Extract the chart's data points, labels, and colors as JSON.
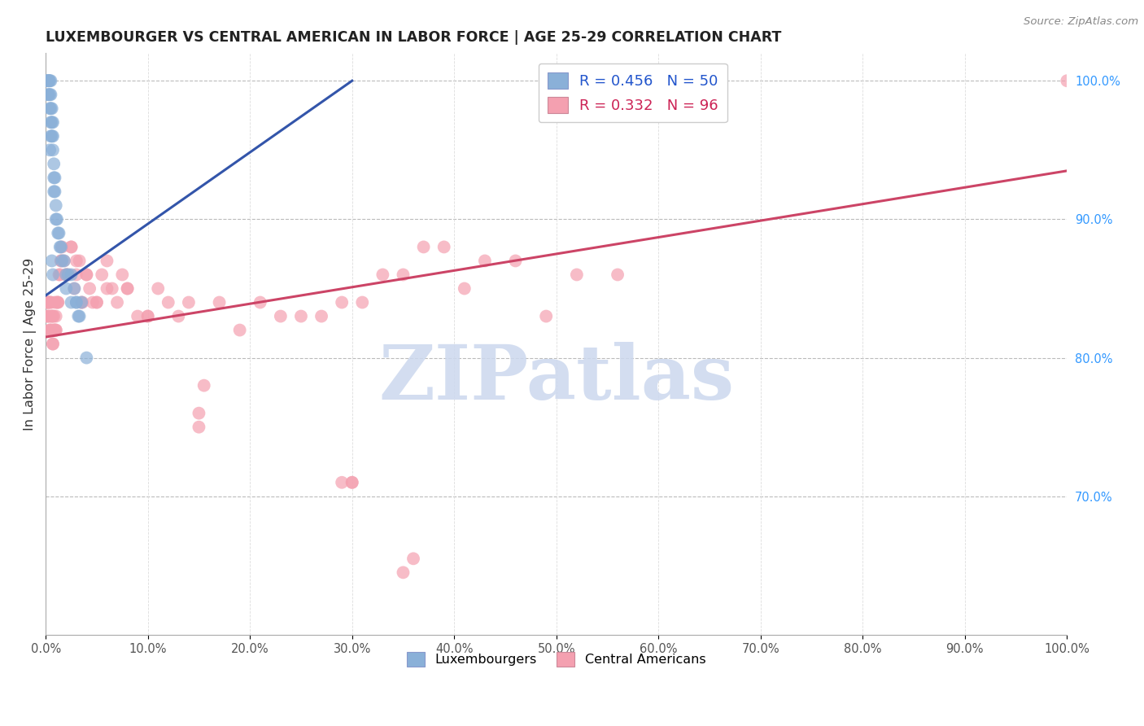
{
  "title": "LUXEMBOURGER VS CENTRAL AMERICAN IN LABOR FORCE | AGE 25-29 CORRELATION CHART",
  "source": "Source: ZipAtlas.com",
  "ylabel": "In Labor Force | Age 25-29",
  "xlim": [
    0.0,
    1.0
  ],
  "ylim": [
    0.6,
    1.02
  ],
  "right_yticks": [
    0.7,
    0.8,
    0.9,
    1.0
  ],
  "right_yticklabels": [
    "70.0%",
    "80.0%",
    "90.0%",
    "100.0%"
  ],
  "xtick_positions": [
    0.0,
    0.1,
    0.2,
    0.3,
    0.4,
    0.5,
    0.6,
    0.7,
    0.8,
    0.9,
    1.0
  ],
  "xtick_labels": [
    "0.0%",
    "10.0%",
    "20.0%",
    "30.0%",
    "40.0%",
    "50.0%",
    "60.0%",
    "70.0%",
    "80.0%",
    "90.0%",
    "100.0%"
  ],
  "blue_R": 0.456,
  "blue_N": 50,
  "pink_R": 0.332,
  "pink_N": 96,
  "blue_color": "#8ab0d8",
  "pink_color": "#f4a0b0",
  "blue_line_color": "#3355aa",
  "pink_line_color": "#cc4466",
  "watermark_text": "ZIPatlas",
  "watermark_color": "#ccd8ee",
  "blue_line_x0": 0.0,
  "blue_line_y0": 0.845,
  "blue_line_x1": 0.3,
  "blue_line_y1": 1.0,
  "pink_line_x0": 0.0,
  "pink_line_y0": 0.815,
  "pink_line_x1": 1.0,
  "pink_line_y1": 0.935,
  "blue_points_x": [
    0.001,
    0.002,
    0.002,
    0.003,
    0.003,
    0.003,
    0.003,
    0.004,
    0.004,
    0.004,
    0.005,
    0.005,
    0.005,
    0.005,
    0.006,
    0.006,
    0.006,
    0.007,
    0.007,
    0.007,
    0.008,
    0.008,
    0.009,
    0.009,
    0.01,
    0.01,
    0.011,
    0.012,
    0.013,
    0.014,
    0.015,
    0.016,
    0.018,
    0.02,
    0.022,
    0.025,
    0.028,
    0.03,
    0.032,
    0.035,
    0.006,
    0.007,
    0.005,
    0.004,
    0.03,
    0.033,
    0.04,
    0.008,
    0.02,
    0.025
  ],
  "blue_points_y": [
    1.0,
    1.0,
    0.99,
    1.0,
    1.0,
    0.99,
    1.0,
    0.99,
    1.0,
    0.98,
    1.0,
    0.99,
    0.98,
    0.97,
    0.98,
    0.97,
    0.96,
    0.97,
    0.96,
    0.95,
    0.94,
    0.93,
    0.93,
    0.92,
    0.91,
    0.9,
    0.9,
    0.89,
    0.89,
    0.88,
    0.88,
    0.87,
    0.87,
    0.86,
    0.86,
    0.86,
    0.85,
    0.84,
    0.83,
    0.84,
    0.87,
    0.86,
    0.96,
    0.95,
    0.84,
    0.83,
    0.8,
    0.92,
    0.85,
    0.84
  ],
  "pink_points_x": [
    0.001,
    0.001,
    0.002,
    0.002,
    0.003,
    0.003,
    0.004,
    0.004,
    0.005,
    0.005,
    0.006,
    0.006,
    0.007,
    0.007,
    0.008,
    0.008,
    0.009,
    0.009,
    0.01,
    0.01,
    0.011,
    0.012,
    0.013,
    0.014,
    0.015,
    0.016,
    0.018,
    0.02,
    0.022,
    0.025,
    0.028,
    0.03,
    0.033,
    0.036,
    0.04,
    0.043,
    0.046,
    0.05,
    0.055,
    0.06,
    0.065,
    0.07,
    0.075,
    0.08,
    0.09,
    0.1,
    0.11,
    0.12,
    0.13,
    0.14,
    0.15,
    0.155,
    0.17,
    0.19,
    0.21,
    0.23,
    0.25,
    0.27,
    0.29,
    0.31,
    0.33,
    0.35,
    0.37,
    0.39,
    0.41,
    0.43,
    0.46,
    0.49,
    0.52,
    0.56,
    0.002,
    0.003,
    0.004,
    0.005,
    0.006,
    0.007,
    0.008,
    0.01,
    0.012,
    0.015,
    0.02,
    0.025,
    0.03,
    0.035,
    0.04,
    0.05,
    0.06,
    0.08,
    0.1,
    0.15,
    0.29,
    0.3,
    0.3,
    0.35,
    0.36,
    1.0
  ],
  "pink_points_y": [
    0.84,
    0.83,
    0.84,
    0.83,
    0.84,
    0.83,
    0.83,
    0.82,
    0.84,
    0.82,
    0.83,
    0.82,
    0.83,
    0.81,
    0.83,
    0.82,
    0.84,
    0.82,
    0.83,
    0.82,
    0.84,
    0.84,
    0.86,
    0.86,
    0.87,
    0.88,
    0.87,
    0.86,
    0.86,
    0.88,
    0.85,
    0.86,
    0.87,
    0.84,
    0.86,
    0.85,
    0.84,
    0.84,
    0.86,
    0.87,
    0.85,
    0.84,
    0.86,
    0.85,
    0.83,
    0.83,
    0.85,
    0.84,
    0.83,
    0.84,
    0.76,
    0.78,
    0.84,
    0.82,
    0.84,
    0.83,
    0.83,
    0.83,
    0.84,
    0.84,
    0.86,
    0.86,
    0.88,
    0.88,
    0.85,
    0.87,
    0.87,
    0.83,
    0.86,
    0.86,
    0.84,
    0.84,
    0.82,
    0.84,
    0.83,
    0.81,
    0.82,
    0.82,
    0.84,
    0.87,
    0.86,
    0.88,
    0.87,
    0.84,
    0.86,
    0.84,
    0.85,
    0.85,
    0.83,
    0.75,
    0.71,
    0.71,
    0.71,
    0.645,
    0.655,
    1.0
  ]
}
